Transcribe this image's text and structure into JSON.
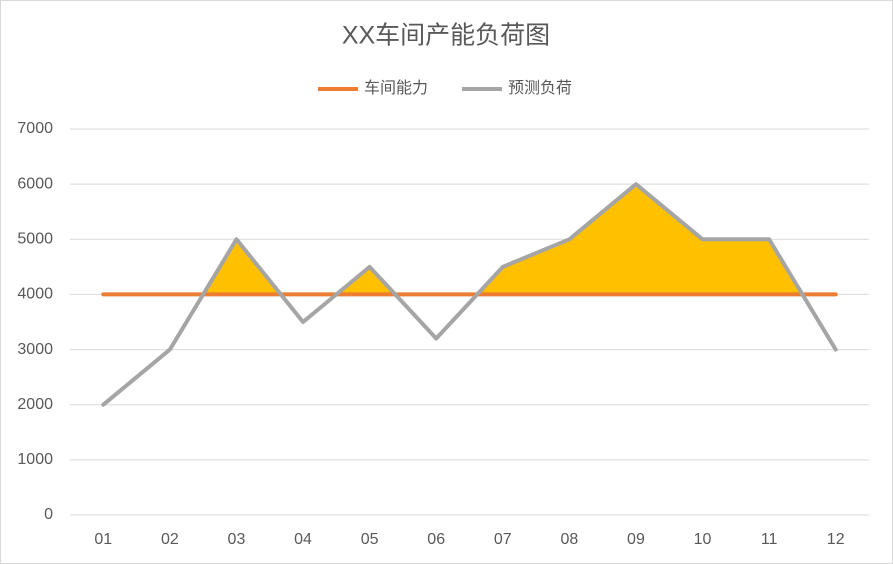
{
  "chart_data": {
    "type": "line",
    "title": "XX车间产能负荷图",
    "categories": [
      "01",
      "02",
      "03",
      "04",
      "05",
      "06",
      "07",
      "08",
      "09",
      "10",
      "11",
      "12"
    ],
    "series": [
      {
        "name": "车间能力",
        "color": "#ed7d31",
        "values": [
          4000,
          4000,
          4000,
          4000,
          4000,
          4000,
          4000,
          4000,
          4000,
          4000,
          4000,
          4000
        ]
      },
      {
        "name": "预测负荷",
        "color": "#a5a5a5",
        "values": [
          2000,
          3000,
          5000,
          3500,
          4500,
          3200,
          4500,
          5000,
          6000,
          5000,
          5000,
          3000
        ]
      }
    ],
    "over_fill_color": "#ffc000",
    "ylim": [
      0,
      7000
    ],
    "yticks": [
      0,
      1000,
      2000,
      3000,
      4000,
      5000,
      6000,
      7000
    ],
    "grid": true,
    "legend": "top"
  }
}
